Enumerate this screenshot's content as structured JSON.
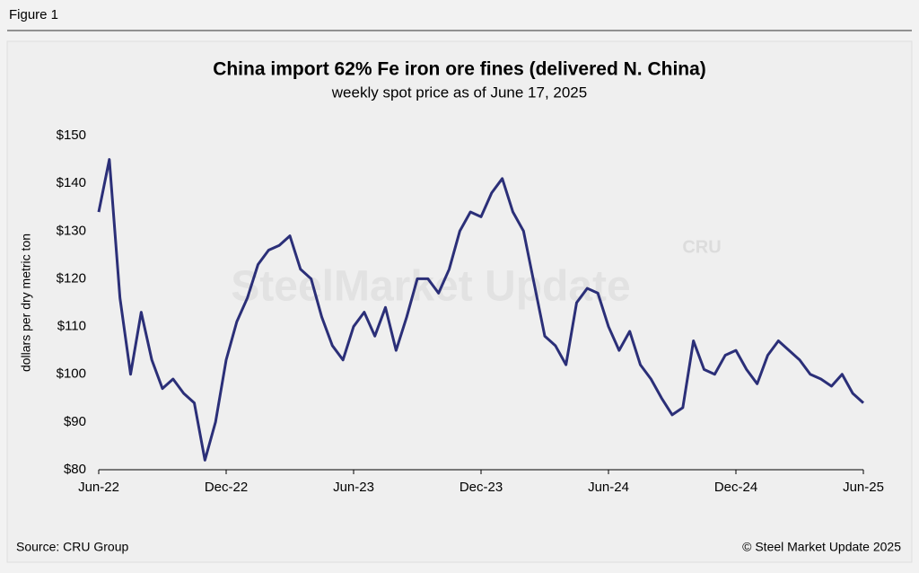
{
  "figure_label": "Figure 1",
  "source": "Source: CRU Group",
  "copyright": "© Steel Market Update 2025",
  "watermark": "SteelMarket Update",
  "watermark_logo": "CRU",
  "chart_data": {
    "type": "line",
    "title": "China import 62% Fe iron ore fines (delivered N. China)",
    "subtitle": "weekly spot price as of June 17, 2025",
    "ylabel": "dollars per dry metric ton",
    "categories": [
      "Jun-22",
      null,
      null,
      null,
      null,
      null,
      null,
      null,
      null,
      null,
      null,
      null,
      "Dec-22",
      null,
      null,
      null,
      null,
      null,
      null,
      null,
      null,
      null,
      null,
      null,
      "Jun-23",
      null,
      null,
      null,
      null,
      null,
      null,
      null,
      null,
      null,
      null,
      null,
      "Dec-23",
      null,
      null,
      null,
      null,
      null,
      null,
      null,
      null,
      null,
      null,
      null,
      "Jun-24",
      null,
      null,
      null,
      null,
      null,
      null,
      null,
      null,
      null,
      null,
      null,
      "Dec-24",
      null,
      null,
      null,
      null,
      null,
      null,
      null,
      null,
      null,
      null,
      null,
      "Jun-25"
    ],
    "series": [
      {
        "name": "China import 62% Fe iron ore fines",
        "color": "#2b2f78",
        "values": [
          134,
          145,
          116,
          100,
          113,
          103,
          97,
          99,
          96,
          94,
          82,
          90,
          103,
          111,
          116,
          123,
          126,
          127,
          129,
          122,
          120,
          112,
          106,
          103,
          110,
          113,
          108,
          114,
          105,
          112,
          120,
          120,
          117,
          122,
          130,
          134,
          133,
          138,
          141,
          134,
          130,
          119,
          108,
          106,
          102,
          115,
          118,
          117,
          110,
          105,
          109,
          102,
          99,
          95,
          91.5,
          93,
          107,
          101,
          100,
          104,
          105,
          101,
          98,
          104,
          107,
          105,
          103,
          100,
          99,
          97.5,
          100,
          96,
          94
        ]
      }
    ],
    "ylim": [
      80,
      150
    ],
    "yticks": [
      {
        "value": 80,
        "label": "$80"
      },
      {
        "value": 90,
        "label": "$90"
      },
      {
        "value": 100,
        "label": "$100"
      },
      {
        "value": 110,
        "label": "$110"
      },
      {
        "value": 120,
        "label": "$120"
      },
      {
        "value": 130,
        "label": "$130"
      },
      {
        "value": 140,
        "label": "$140"
      },
      {
        "value": 150,
        "label": "$150"
      }
    ],
    "grid": false
  }
}
